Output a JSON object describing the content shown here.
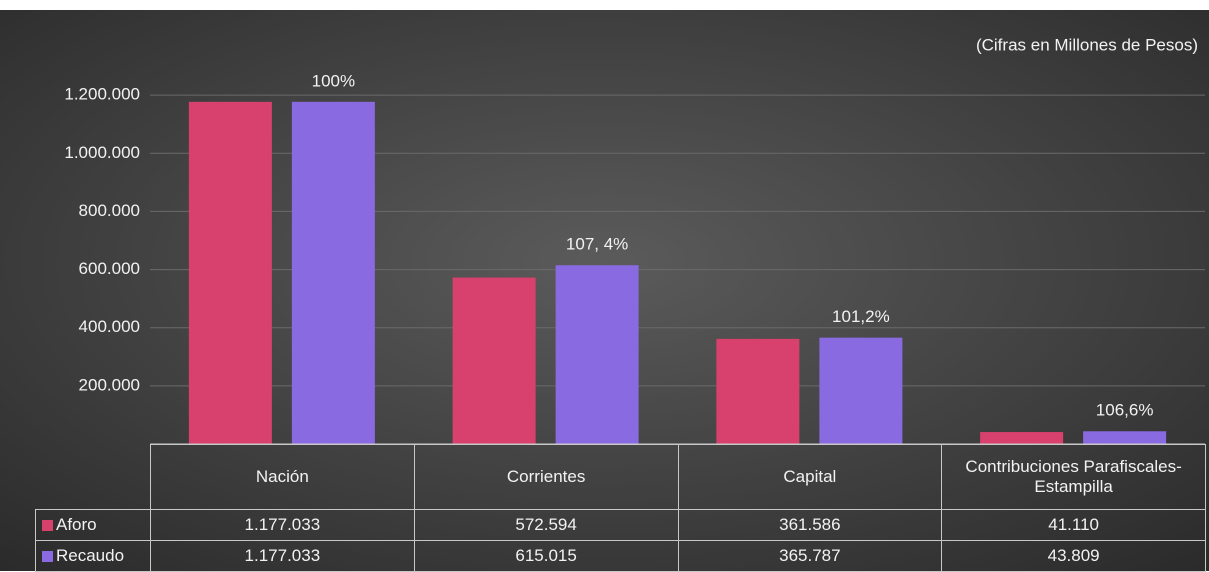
{
  "chart_data": {
    "type": "bar",
    "subtitle": "(Cifras en Millones de Pesos)",
    "categories": [
      "Nación",
      "Corrientes",
      "Capital",
      "Contribuciones Parafiscales- Estampilla"
    ],
    "series": [
      {
        "name": "Aforo",
        "color": "#d8406e",
        "values": [
          1177033,
          572594,
          361586,
          41110
        ],
        "value_labels": [
          "1.177.033",
          "572.594",
          "361.586",
          "41.110"
        ]
      },
      {
        "name": "Recaudo",
        "color": "#8a6ae0",
        "values": [
          1177033,
          615015,
          365787,
          43809
        ],
        "value_labels": [
          "1.177.033",
          "615.015",
          "365.787",
          "43.809"
        ]
      }
    ],
    "annotations": [
      "100%",
      "107, 4%",
      "101,2%",
      "106,6%"
    ],
    "ylim": [
      0,
      1400000
    ],
    "yticks": [
      {
        "value": 200000,
        "label": "200.000"
      },
      {
        "value": 400000,
        "label": "400.000"
      },
      {
        "value": 600000,
        "label": "600.000"
      },
      {
        "value": 800000,
        "label": "800.000"
      },
      {
        "value": 1000000,
        "label": "1.000.000"
      },
      {
        "value": 1200000,
        "label": "1.200.000"
      }
    ],
    "grid": true
  }
}
